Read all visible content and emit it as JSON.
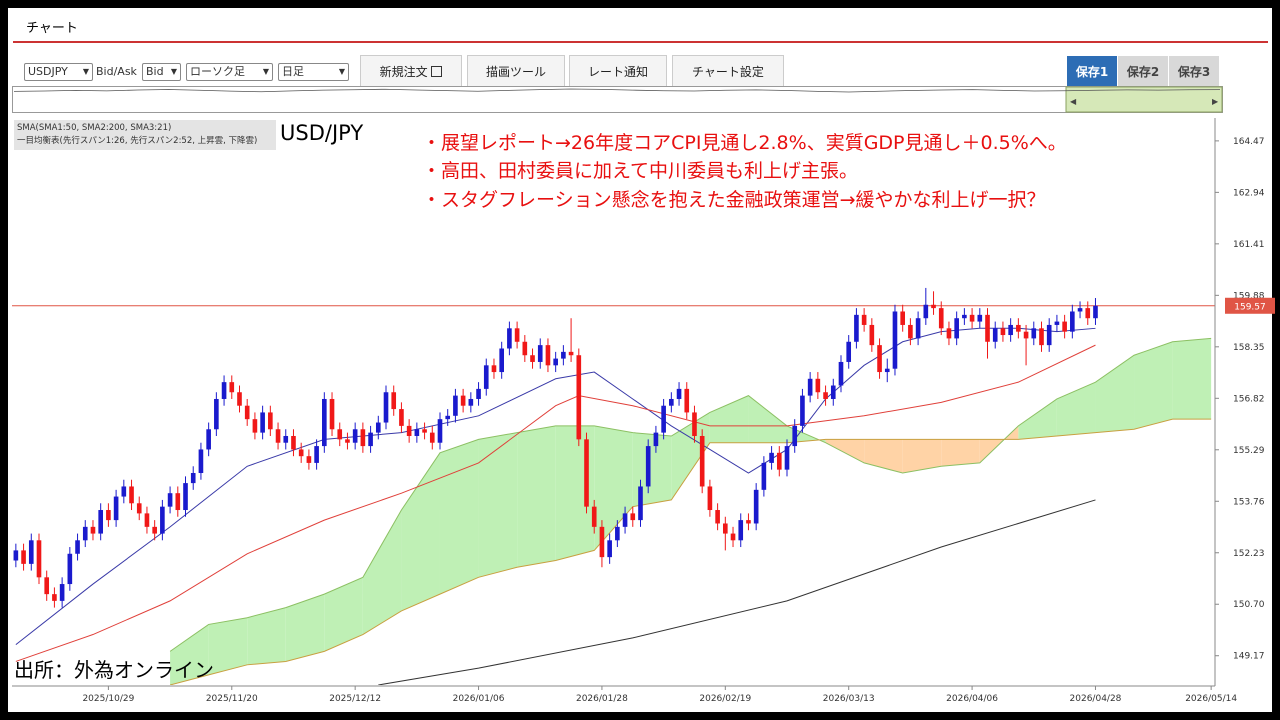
{
  "header": {
    "title": "チャート"
  },
  "toolbar": {
    "symbol": "USDJPY",
    "bidask_label": "Bid/Ask",
    "bidask": "Bid",
    "chart_kind": "ローソク足",
    "interval": "日足",
    "buttons": [
      "新規注文",
      "描画ツール",
      "レート通知",
      "チャート設定"
    ],
    "saves": [
      "保存1",
      "保存2",
      "保存3"
    ]
  },
  "navigator": {
    "ylim": [
      145,
      165
    ],
    "values": [
      161.5,
      161.8,
      162.3,
      161.9,
      162.6,
      163.0,
      162.4,
      161.7,
      161.2,
      161.9,
      162.5,
      162.8,
      163.2,
      162.6,
      162.1,
      161.6,
      162.3,
      162.9,
      163.4,
      163.1,
      162.5,
      162.0,
      161.8,
      162.4,
      162.7,
      162.2,
      161.5,
      161.0,
      161.6,
      162.2,
      162.6,
      162.9,
      162.3,
      161.8,
      162.0,
      162.4,
      162.7,
      162.5,
      162.8,
      162.9
    ]
  },
  "chart_data": {
    "type": "candlestick",
    "title": "USD/JPY",
    "legend_lines": [
      "SMA(SMA1:50, SMA2:200, SMA3:21)",
      "一目均衡表(先行スパン1:26, 先行スパン2:52, 上昇雲, 下降雲)"
    ],
    "annotations": [
      "・展望レポート→26年度コアCPI見通し2.8%、実質GDP見通し＋0.5%へ。",
      "・高田、田村委員に加えて中川委員も利上げ主張。",
      "・スタグフレーション懸念を抱えた金融政策運営→緩やかな利上げ一択？"
    ],
    "source": "出所：外為オンライン",
    "categories": [
      null,
      null,
      null,
      null,
      null,
      null,
      null,
      null,
      null,
      null,
      null,
      null,
      "2025/10/29",
      null,
      null,
      null,
      null,
      null,
      null,
      null,
      null,
      null,
      null,
      null,
      null,
      null,
      null,
      null,
      "2025/11/20",
      null,
      null,
      null,
      null,
      null,
      null,
      null,
      null,
      null,
      null,
      null,
      null,
      null,
      null,
      null,
      "2025/12/12",
      null,
      null,
      null,
      null,
      null,
      null,
      null,
      null,
      null,
      null,
      null,
      null,
      null,
      null,
      null,
      "2026/01/06",
      null,
      null,
      null,
      null,
      null,
      null,
      null,
      null,
      null,
      null,
      null,
      null,
      null,
      null,
      null,
      "2026/01/28",
      null,
      null,
      null,
      null,
      null,
      null,
      null,
      null,
      null,
      null,
      null,
      null,
      null,
      null,
      null,
      "2026/02/19",
      null,
      null,
      null,
      null,
      null,
      null,
      null,
      null,
      null,
      null,
      null,
      null,
      null,
      null,
      null,
      "2026/03/13",
      null,
      null,
      null,
      null,
      null,
      null,
      null,
      null,
      null,
      null,
      null,
      null,
      null,
      null,
      null,
      "2026/04/06",
      null,
      null,
      null,
      null,
      null,
      null,
      null,
      null,
      null,
      null,
      null,
      null,
      null,
      null,
      null,
      "2026/04/28",
      null,
      null,
      null,
      null,
      null,
      null,
      null,
      null,
      null,
      null,
      null,
      null,
      null,
      null,
      "2026/05/14"
    ],
    "candles": [
      [
        152.0,
        152.5,
        151.8,
        152.3
      ],
      [
        152.3,
        152.5,
        151.7,
        151.9
      ],
      [
        151.9,
        152.8,
        151.7,
        152.6
      ],
      [
        152.6,
        152.8,
        151.3,
        151.5
      ],
      [
        151.5,
        151.7,
        150.8,
        151.0
      ],
      [
        151.0,
        151.2,
        150.6,
        150.8
      ],
      [
        150.8,
        151.5,
        150.6,
        151.3
      ],
      [
        151.3,
        152.4,
        151.1,
        152.2
      ],
      [
        152.2,
        152.8,
        152.0,
        152.6
      ],
      [
        152.6,
        153.2,
        152.4,
        153.0
      ],
      [
        153.0,
        153.2,
        152.6,
        152.8
      ],
      [
        152.8,
        153.7,
        152.6,
        153.5
      ],
      [
        153.5,
        153.7,
        153.0,
        153.2
      ],
      [
        153.2,
        154.1,
        153.0,
        153.9
      ],
      [
        153.9,
        154.4,
        153.7,
        154.2
      ],
      [
        154.2,
        154.4,
        153.5,
        153.7
      ],
      [
        153.7,
        153.9,
        153.2,
        153.4
      ],
      [
        153.4,
        153.6,
        152.8,
        153.0
      ],
      [
        153.0,
        153.2,
        152.6,
        152.8
      ],
      [
        152.8,
        153.8,
        152.6,
        153.6
      ],
      [
        153.6,
        154.2,
        153.4,
        154.0
      ],
      [
        154.0,
        154.2,
        153.3,
        153.5
      ],
      [
        153.5,
        154.5,
        153.3,
        154.3
      ],
      [
        154.3,
        154.8,
        154.1,
        154.6
      ],
      [
        154.6,
        155.5,
        154.4,
        155.3
      ],
      [
        155.3,
        156.1,
        155.1,
        155.9
      ],
      [
        155.9,
        157.0,
        155.7,
        156.8
      ],
      [
        156.8,
        157.5,
        156.6,
        157.3
      ],
      [
        157.3,
        157.5,
        156.8,
        157.0
      ],
      [
        157.0,
        157.2,
        156.4,
        156.6
      ],
      [
        156.6,
        156.8,
        156.0,
        156.2
      ],
      [
        156.2,
        156.4,
        155.6,
        155.8
      ],
      [
        155.8,
        156.6,
        155.6,
        156.4
      ],
      [
        156.4,
        156.6,
        155.7,
        155.9
      ],
      [
        155.9,
        156.1,
        155.3,
        155.5
      ],
      [
        155.5,
        155.9,
        155.3,
        155.7
      ],
      [
        155.7,
        155.9,
        155.1,
        155.3
      ],
      [
        155.3,
        155.5,
        154.9,
        155.1
      ],
      [
        155.1,
        155.3,
        154.7,
        154.9
      ],
      [
        154.9,
        155.6,
        154.7,
        155.4
      ],
      [
        155.4,
        157.0,
        155.2,
        156.8
      ],
      [
        156.8,
        157.0,
        155.7,
        155.9
      ],
      [
        155.9,
        156.1,
        155.4,
        155.6
      ],
      [
        155.6,
        155.8,
        155.3,
        155.5
      ],
      [
        155.5,
        156.1,
        155.3,
        155.9
      ],
      [
        155.9,
        156.1,
        155.2,
        155.4
      ],
      [
        155.4,
        156.0,
        155.2,
        155.8
      ],
      [
        155.8,
        156.3,
        155.6,
        156.1
      ],
      [
        156.1,
        157.2,
        155.9,
        157.0
      ],
      [
        157.0,
        157.2,
        156.3,
        156.5
      ],
      [
        156.5,
        156.7,
        155.8,
        156.0
      ],
      [
        156.0,
        156.2,
        155.5,
        155.7
      ],
      [
        155.7,
        156.1,
        155.5,
        155.9
      ],
      [
        155.9,
        156.1,
        155.6,
        155.8
      ],
      [
        155.8,
        156.0,
        155.3,
        155.5
      ],
      [
        155.5,
        156.4,
        155.3,
        156.2
      ],
      [
        156.2,
        156.5,
        156.0,
        156.3
      ],
      [
        156.3,
        157.1,
        156.1,
        156.9
      ],
      [
        156.9,
        157.1,
        156.4,
        156.6
      ],
      [
        156.6,
        157.0,
        156.4,
        156.8
      ],
      [
        156.8,
        157.3,
        156.6,
        157.1
      ],
      [
        157.1,
        158.0,
        156.9,
        157.8
      ],
      [
        157.8,
        158.0,
        157.4,
        157.6
      ],
      [
        157.6,
        158.5,
        157.4,
        158.3
      ],
      [
        158.3,
        159.1,
        158.1,
        158.9
      ],
      [
        158.9,
        159.1,
        158.3,
        158.5
      ],
      [
        158.5,
        158.7,
        157.9,
        158.1
      ],
      [
        158.1,
        158.3,
        157.7,
        157.9
      ],
      [
        157.9,
        158.6,
        157.7,
        158.4
      ],
      [
        158.4,
        158.6,
        157.6,
        157.8
      ],
      [
        157.8,
        158.2,
        157.6,
        158.0
      ],
      [
        158.0,
        158.4,
        157.8,
        158.2
      ],
      [
        158.2,
        159.2,
        157.9,
        158.1
      ],
      [
        158.1,
        158.3,
        155.4,
        155.6
      ],
      [
        155.6,
        155.8,
        153.4,
        153.6
      ],
      [
        153.6,
        153.8,
        152.8,
        153.0
      ],
      [
        153.0,
        153.2,
        151.8,
        152.1
      ],
      [
        152.1,
        152.8,
        151.9,
        152.6
      ],
      [
        152.6,
        153.2,
        152.4,
        153.0
      ],
      [
        153.0,
        153.6,
        152.8,
        153.4
      ],
      [
        153.4,
        153.6,
        153.0,
        153.2
      ],
      [
        153.2,
        154.4,
        153.0,
        154.2
      ],
      [
        154.2,
        155.6,
        154.0,
        155.4
      ],
      [
        155.4,
        156.0,
        155.2,
        155.8
      ],
      [
        155.8,
        156.8,
        155.6,
        156.6
      ],
      [
        156.6,
        157.0,
        156.4,
        156.8
      ],
      [
        156.8,
        157.3,
        156.6,
        157.1
      ],
      [
        157.1,
        157.3,
        156.2,
        156.4
      ],
      [
        156.4,
        156.6,
        155.5,
        155.7
      ],
      [
        155.7,
        155.9,
        154.0,
        154.2
      ],
      [
        154.2,
        154.4,
        153.3,
        153.5
      ],
      [
        153.5,
        153.7,
        152.9,
        153.1
      ],
      [
        153.1,
        153.3,
        152.3,
        152.8
      ],
      [
        152.8,
        153.0,
        152.4,
        152.6
      ],
      [
        152.6,
        153.4,
        152.4,
        153.2
      ],
      [
        153.2,
        153.4,
        152.9,
        153.1
      ],
      [
        153.1,
        154.3,
        152.9,
        154.1
      ],
      [
        154.1,
        155.1,
        153.9,
        154.9
      ],
      [
        154.9,
        155.4,
        154.7,
        155.2
      ],
      [
        155.2,
        155.4,
        154.5,
        154.7
      ],
      [
        154.7,
        155.6,
        154.5,
        155.4
      ],
      [
        155.4,
        156.2,
        155.2,
        156.0
      ],
      [
        156.0,
        157.1,
        155.8,
        156.9
      ],
      [
        156.9,
        157.6,
        156.7,
        157.4
      ],
      [
        157.4,
        157.6,
        156.8,
        157.0
      ],
      [
        157.0,
        157.2,
        156.6,
        156.8
      ],
      [
        156.8,
        157.4,
        156.6,
        157.2
      ],
      [
        157.2,
        158.1,
        157.0,
        157.9
      ],
      [
        157.9,
        158.7,
        157.7,
        158.5
      ],
      [
        158.5,
        159.5,
        158.3,
        159.3
      ],
      [
        159.3,
        159.5,
        158.8,
        159.0
      ],
      [
        159.0,
        159.2,
        158.2,
        158.4
      ],
      [
        158.4,
        158.6,
        157.4,
        157.6
      ],
      [
        157.6,
        158.0,
        157.3,
        157.7
      ],
      [
        157.7,
        159.6,
        157.5,
        159.4
      ],
      [
        159.4,
        159.6,
        158.8,
        159.0
      ],
      [
        159.0,
        159.2,
        158.4,
        158.6
      ],
      [
        158.6,
        159.4,
        158.4,
        159.2
      ],
      [
        159.2,
        160.1,
        159.0,
        159.6
      ],
      [
        159.6,
        160.0,
        159.3,
        159.5
      ],
      [
        159.5,
        159.7,
        158.7,
        158.9
      ],
      [
        158.9,
        159.1,
        158.4,
        158.6
      ],
      [
        158.6,
        159.4,
        158.4,
        159.2
      ],
      [
        159.2,
        159.5,
        159.0,
        159.3
      ],
      [
        159.3,
        159.5,
        158.9,
        159.1
      ],
      [
        159.1,
        159.5,
        158.9,
        159.3
      ],
      [
        159.3,
        159.5,
        158.0,
        158.5
      ],
      [
        158.5,
        159.1,
        158.3,
        158.9
      ],
      [
        158.9,
        159.1,
        158.5,
        158.7
      ],
      [
        158.7,
        159.2,
        158.5,
        159.0
      ],
      [
        159.0,
        159.2,
        158.6,
        158.8
      ],
      [
        158.8,
        159.0,
        157.8,
        158.6
      ],
      [
        158.6,
        159.1,
        158.4,
        158.9
      ],
      [
        158.9,
        159.1,
        158.2,
        158.4
      ],
      [
        158.4,
        159.2,
        158.2,
        159.0
      ],
      [
        159.0,
        159.3,
        158.8,
        159.1
      ],
      [
        159.1,
        159.3,
        158.6,
        158.8
      ],
      [
        158.8,
        159.6,
        158.6,
        159.4
      ],
      [
        159.4,
        159.7,
        159.2,
        159.5
      ],
      [
        159.5,
        159.7,
        159.0,
        159.2
      ],
      [
        159.2,
        159.8,
        159.0,
        159.57
      ]
    ],
    "up_color": "#1a1acd",
    "down_color": "#f01818",
    "ylim": [
      148.3,
      165.15
    ],
    "yticks": [
      149.17,
      {
        "value": 150.7,
        "label": "150.70"
      },
      152.23,
      153.76,
      155.29,
      156.82,
      158.35,
      159.88,
      161.41,
      162.94,
      164.47
    ],
    "last_price": 159.57,
    "last_price_color": "#e05545",
    "series": [
      {
        "color": "#3a3aa8",
        "x": [
          0,
          10,
          20,
          30,
          40,
          50,
          60,
          70,
          75,
          80,
          85,
          90,
          95,
          100,
          105,
          110,
          115,
          120,
          125,
          130,
          135,
          140
        ],
        "values": [
          149.5,
          151.3,
          153.0,
          154.8,
          155.6,
          155.8,
          156.3,
          157.4,
          157.6,
          156.8,
          156.0,
          155.3,
          154.6,
          155.3,
          156.8,
          157.8,
          158.5,
          158.8,
          158.9,
          158.9,
          158.8,
          158.9
        ]
      },
      {
        "color": "#e0403a",
        "x": [
          0,
          10,
          20,
          30,
          40,
          50,
          60,
          70,
          73,
          80,
          90,
          100,
          110,
          120,
          130,
          140
        ],
        "values": [
          149.0,
          149.8,
          150.8,
          152.2,
          153.2,
          154.0,
          154.9,
          156.6,
          156.9,
          156.6,
          156.0,
          156.0,
          156.3,
          156.7,
          157.3,
          158.4
        ]
      },
      {
        "color": "#333333",
        "x": [
          47,
          60,
          80,
          100,
          120,
          140
        ],
        "values": [
          148.3,
          148.8,
          149.7,
          150.8,
          152.4,
          153.8
        ]
      }
    ],
    "cloud": {
      "x": [
        20,
        25,
        30,
        35,
        40,
        45,
        50,
        55,
        60,
        65,
        70,
        75,
        80,
        85,
        90,
        95,
        100,
        105,
        110,
        115,
        120,
        125,
        130,
        135,
        140,
        145,
        150,
        155
      ],
      "span_a": [
        149.3,
        150.1,
        150.3,
        150.6,
        151.0,
        151.5,
        153.5,
        155.2,
        155.6,
        155.8,
        156.0,
        156.0,
        155.8,
        155.7,
        156.4,
        156.9,
        156.0,
        155.5,
        154.9,
        154.6,
        154.8,
        154.9,
        156.0,
        156.8,
        157.3,
        158.1,
        158.5,
        158.6
      ],
      "span_b": [
        148.3,
        148.6,
        148.9,
        149.0,
        149.3,
        149.8,
        150.5,
        151.0,
        151.5,
        151.8,
        152.0,
        152.3,
        153.6,
        153.8,
        155.5,
        155.5,
        155.5,
        155.6,
        155.6,
        155.6,
        155.6,
        155.6,
        155.6,
        155.7,
        155.8,
        155.9,
        156.2,
        156.2
      ],
      "up_color": "#bff0b5",
      "down_color": "#ffd3a6",
      "span_a_color": "#8cc063",
      "span_b_color": "#c8a040"
    }
  }
}
